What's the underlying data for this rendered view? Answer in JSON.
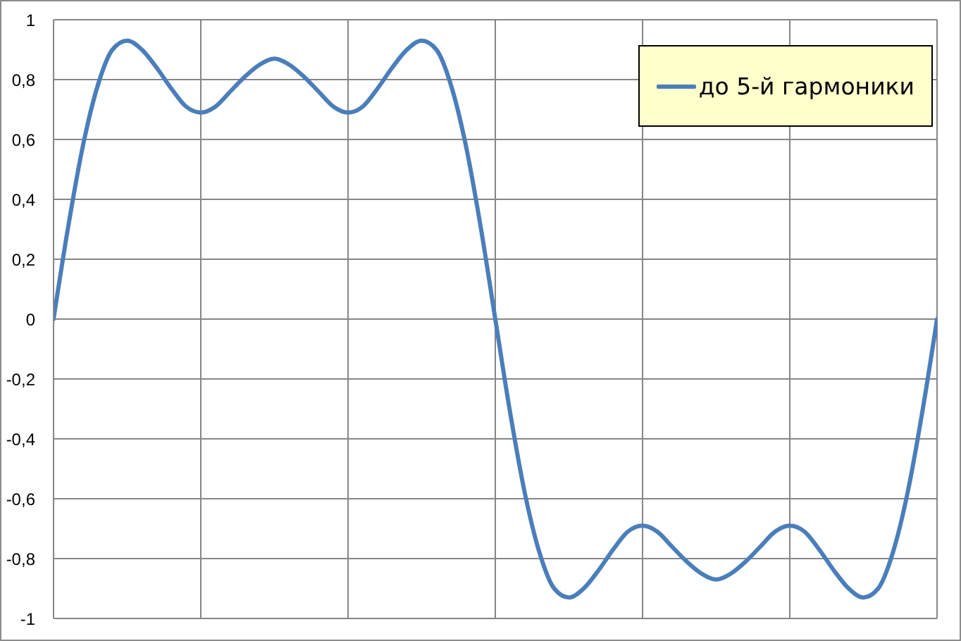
{
  "chart_data": {
    "type": "line",
    "categories": [
      null,
      null,
      null,
      null,
      null,
      null,
      null,
      null,
      null,
      null,
      null,
      null,
      null,
      null,
      null,
      null,
      null,
      null,
      null,
      null,
      null,
      null,
      null,
      null,
      null,
      null,
      null,
      null,
      null,
      null,
      null,
      null,
      null,
      null,
      null,
      null,
      null,
      null,
      null,
      null,
      null,
      null,
      null,
      null,
      null,
      null,
      null,
      null,
      null,
      null,
      null,
      null,
      null,
      null,
      null,
      null,
      null,
      null,
      null,
      null,
      null
    ],
    "series": [
      {
        "name": "до 5-й гармоники",
        "color": "#4a7ebb",
        "values": [
          0,
          0.31,
          0.58,
          0.78,
          0.9,
          0.93,
          0.9,
          0.84,
          0.77,
          0.71,
          0.69,
          0.71,
          0.76,
          0.81,
          0.85,
          0.87,
          0.85,
          0.81,
          0.76,
          0.71,
          0.69,
          0.71,
          0.77,
          0.84,
          0.9,
          0.93,
          0.9,
          0.78,
          0.58,
          0.31,
          0,
          -0.31,
          -0.58,
          -0.78,
          -0.9,
          -0.93,
          -0.9,
          -0.84,
          -0.77,
          -0.71,
          -0.69,
          -0.71,
          -0.76,
          -0.81,
          -0.85,
          -0.87,
          -0.85,
          -0.81,
          -0.76,
          -0.71,
          -0.69,
          -0.71,
          -0.77,
          -0.84,
          -0.9,
          -0.93,
          -0.9,
          -0.78,
          -0.58,
          -0.31,
          0
        ]
      }
    ],
    "ylim": [
      -1,
      1
    ],
    "yticks": [
      -1,
      {
        "value": -0.8,
        "label": "-0,8"
      },
      {
        "value": -0.6,
        "label": "-0,6"
      },
      {
        "value": -0.4,
        "label": "-0,4"
      },
      {
        "value": -0.2,
        "label": "-0,2"
      },
      0,
      {
        "value": 0.2,
        "label": "0,2"
      },
      {
        "value": 0.4,
        "label": "0,4"
      },
      {
        "value": 0.6,
        "label": "0,6"
      },
      {
        "value": 0.8,
        "label": "0,8"
      },
      1
    ],
    "grid": true,
    "legend": "top right",
    "tick_labels": "y",
    "marker": "none",
    "line_style": "solid"
  }
}
